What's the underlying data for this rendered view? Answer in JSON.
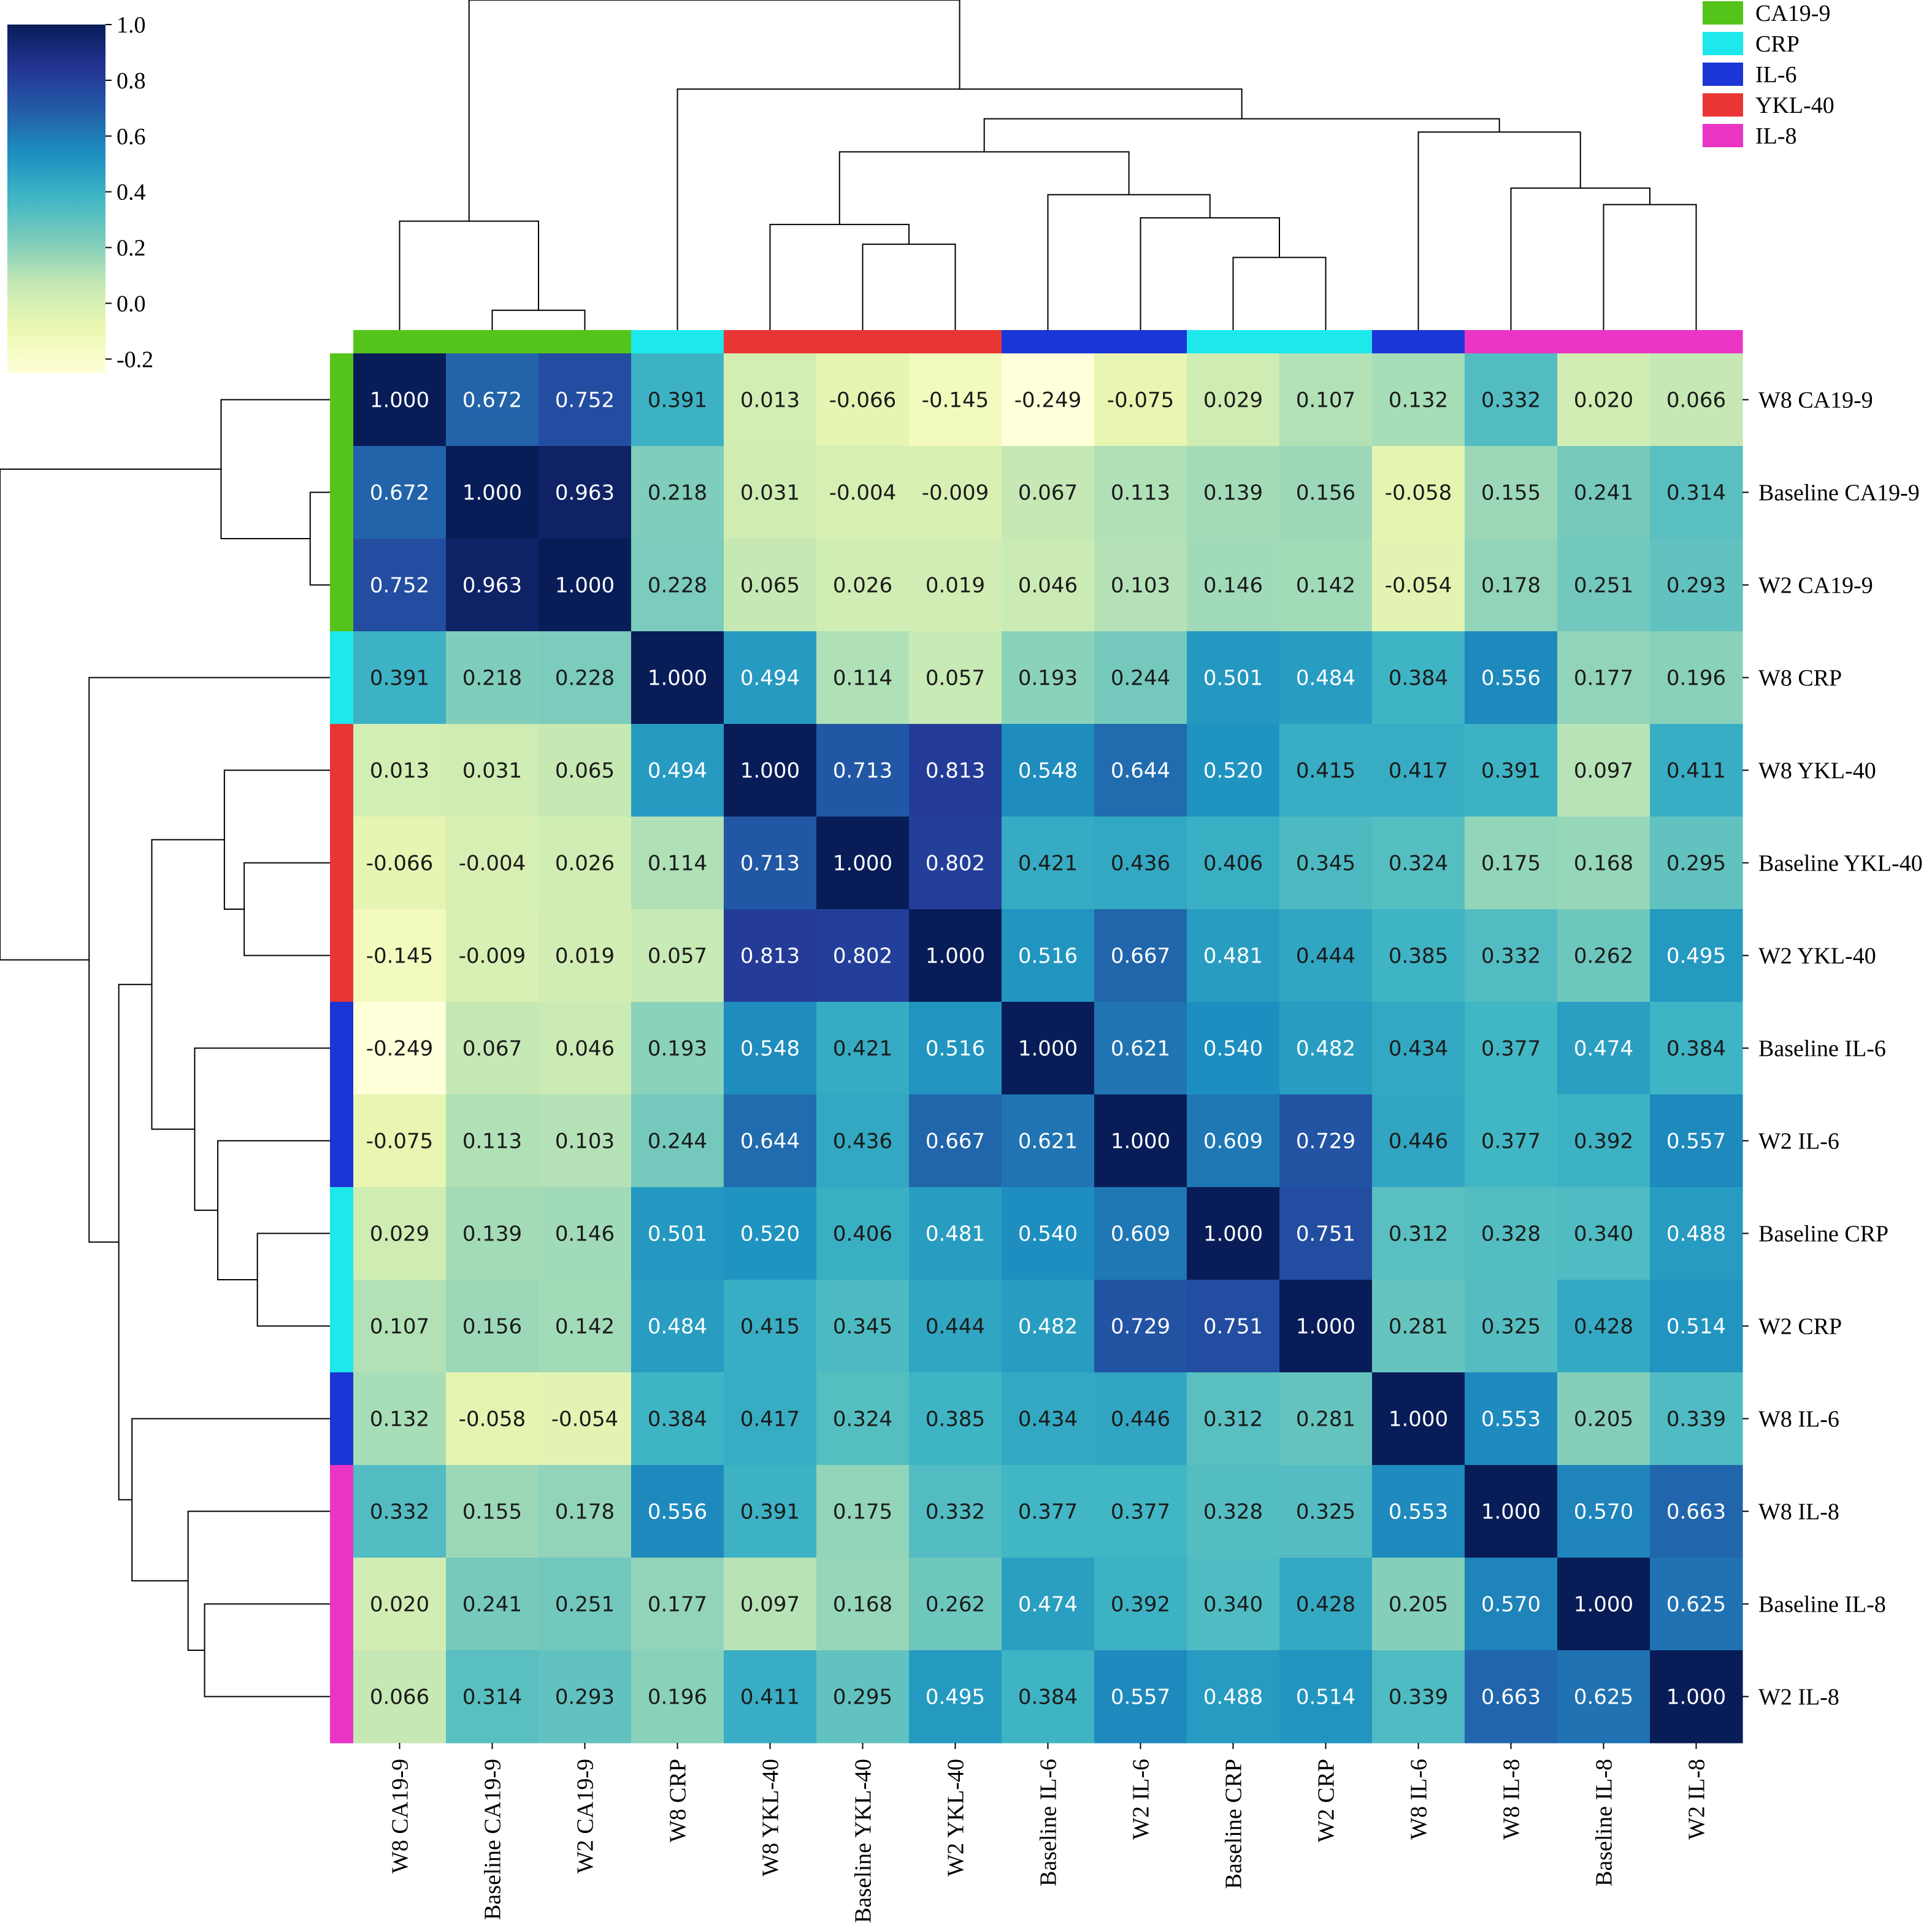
{
  "chart_data": {
    "type": "heatmap",
    "title": "",
    "xlabel": "",
    "ylabel": "",
    "row_labels": [
      "W8 CA19-9",
      "Baseline CA19-9",
      "W2 CA19-9",
      "W8 CRP",
      "W8 YKL-40",
      "Baseline YKL-40",
      "W2 YKL-40",
      "Baseline IL-6",
      "W2 IL-6",
      "Baseline CRP",
      "W2 CRP",
      "W8 IL-6",
      "W8 IL-8",
      "Baseline IL-8",
      "W2 IL-8"
    ],
    "col_labels": [
      "W8 CA19-9",
      "Baseline CA19-9",
      "W2 CA19-9",
      "W8 CRP",
      "W8 YKL-40",
      "Baseline YKL-40",
      "W2 YKL-40",
      "Baseline IL-6",
      "W2 IL-6",
      "Baseline CRP",
      "W2 CRP",
      "W8 IL-6",
      "W8 IL-8",
      "Baseline IL-8",
      "W2 IL-8"
    ],
    "values": [
      [
        1.0,
        0.672,
        0.752,
        0.391,
        0.013,
        -0.066,
        -0.145,
        -0.249,
        -0.075,
        0.029,
        0.107,
        0.132,
        0.332,
        0.02,
        0.066
      ],
      [
        0.672,
        1.0,
        0.963,
        0.218,
        0.031,
        -0.004,
        -0.009,
        0.067,
        0.113,
        0.139,
        0.156,
        -0.058,
        0.155,
        0.241,
        0.314
      ],
      [
        0.752,
        0.963,
        1.0,
        0.228,
        0.065,
        0.026,
        0.019,
        0.046,
        0.103,
        0.146,
        0.142,
        -0.054,
        0.178,
        0.251,
        0.293
      ],
      [
        0.391,
        0.218,
        0.228,
        1.0,
        0.494,
        0.114,
        0.057,
        0.193,
        0.244,
        0.501,
        0.484,
        0.384,
        0.556,
        0.177,
        0.196
      ],
      [
        0.013,
        0.031,
        0.065,
        0.494,
        1.0,
        0.713,
        0.813,
        0.548,
        0.644,
        0.52,
        0.415,
        0.417,
        0.391,
        0.097,
        0.411
      ],
      [
        -0.066,
        -0.004,
        0.026,
        0.114,
        0.713,
        1.0,
        0.802,
        0.421,
        0.436,
        0.406,
        0.345,
        0.324,
        0.175,
        0.168,
        0.295
      ],
      [
        -0.145,
        -0.009,
        0.019,
        0.057,
        0.813,
        0.802,
        1.0,
        0.516,
        0.667,
        0.481,
        0.444,
        0.385,
        0.332,
        0.262,
        0.495
      ],
      [
        -0.249,
        0.067,
        0.046,
        0.193,
        0.548,
        0.421,
        0.516,
        1.0,
        0.621,
        0.54,
        0.482,
        0.434,
        0.377,
        0.474,
        0.384
      ],
      [
        -0.075,
        0.113,
        0.103,
        0.244,
        0.644,
        0.436,
        0.667,
        0.621,
        1.0,
        0.609,
        0.729,
        0.446,
        0.377,
        0.392,
        0.557
      ],
      [
        0.029,
        0.139,
        0.146,
        0.501,
        0.52,
        0.406,
        0.481,
        0.54,
        0.609,
        1.0,
        0.751,
        0.312,
        0.328,
        0.34,
        0.488
      ],
      [
        0.107,
        0.156,
        0.142,
        0.484,
        0.415,
        0.345,
        0.444,
        0.482,
        0.729,
        0.751,
        1.0,
        0.281,
        0.325,
        0.428,
        0.514
      ],
      [
        0.132,
        -0.058,
        -0.054,
        0.384,
        0.417,
        0.324,
        0.385,
        0.434,
        0.446,
        0.312,
        0.281,
        1.0,
        0.553,
        0.205,
        0.339
      ],
      [
        0.332,
        0.155,
        0.178,
        0.556,
        0.391,
        0.175,
        0.332,
        0.377,
        0.377,
        0.328,
        0.325,
        0.553,
        1.0,
        0.57,
        0.663
      ],
      [
        0.02,
        0.241,
        0.251,
        0.177,
        0.097,
        0.168,
        0.262,
        0.474,
        0.392,
        0.34,
        0.428,
        0.205,
        0.57,
        1.0,
        0.625
      ],
      [
        0.066,
        0.314,
        0.293,
        0.196,
        0.411,
        0.295,
        0.495,
        0.384,
        0.557,
        0.488,
        0.514,
        0.339,
        0.663,
        0.625,
        1.0
      ]
    ],
    "value_format": "3 decimals",
    "colormap": {
      "name": "YlGnBu",
      "vmin": -0.25,
      "vmax": 1.0,
      "stops": [
        "#ffffd9",
        "#edf8b1",
        "#c7e9b4",
        "#7fcdbb",
        "#41b6c4",
        "#1d91c0",
        "#225ea8",
        "#253494",
        "#081d58"
      ]
    },
    "colorbar": {
      "ticks": [
        1.0,
        0.8,
        0.6,
        0.4,
        0.2,
        0.0,
        -0.2
      ],
      "tick_labels": [
        "1.0",
        "0.8",
        "0.6",
        "0.4",
        "0.2",
        "0.0",
        "-0.2"
      ],
      "range": [
        -0.25,
        1.0
      ]
    },
    "groups": [
      {
        "name": "CA19-9",
        "color": "#55c41a"
      },
      {
        "name": "CRP",
        "color": "#1de8ec"
      },
      {
        "name": "IL-6",
        "color": "#1c35d6"
      },
      {
        "name": "YKL-40",
        "color": "#ea3535"
      },
      {
        "name": "IL-8",
        "color": "#ea35c4"
      }
    ],
    "row_group_colors": [
      "#55c41a",
      "#55c41a",
      "#55c41a",
      "#1de8ec",
      "#ea3535",
      "#ea3535",
      "#ea3535",
      "#1c35d6",
      "#1c35d6",
      "#1de8ec",
      "#1de8ec",
      "#1c35d6",
      "#ea35c4",
      "#ea35c4",
      "#ea35c4"
    ],
    "col_group_colors": [
      "#55c41a",
      "#55c41a",
      "#55c41a",
      "#1de8ec",
      "#ea3535",
      "#ea3535",
      "#ea3535",
      "#1c35d6",
      "#1c35d6",
      "#1de8ec",
      "#1de8ec",
      "#1c35d6",
      "#ea35c4",
      "#ea35c4",
      "#ea35c4"
    ],
    "legend_placement": "top-right",
    "dendrogram": {
      "method": "hierarchical",
      "order": [
        "W8 CA19-9",
        "Baseline CA19-9",
        "W2 CA19-9",
        "W8 CRP",
        "W8 YKL-40",
        "Baseline YKL-40",
        "W2 YKL-40",
        "Baseline IL-6",
        "W2 IL-6",
        "Baseline CRP",
        "W2 CRP",
        "W8 IL-6",
        "W8 IL-8",
        "Baseline IL-8",
        "W2 IL-8"
      ],
      "max_height": 1.0,
      "merges": [
        {
          "a": 1,
          "b": 2,
          "h": 0.06
        },
        {
          "a": 0,
          "b": "m0",
          "h": 0.33
        },
        {
          "a": 5,
          "b": 6,
          "h": 0.26
        },
        {
          "a": 4,
          "b": "m2",
          "h": 0.32
        },
        {
          "a": 9,
          "b": 10,
          "h": 0.22
        },
        {
          "a": 8,
          "b": "m4",
          "h": 0.34
        },
        {
          "a": 7,
          "b": "m5",
          "h": 0.41
        },
        {
          "a": "m3",
          "b": "m6",
          "h": 0.54
        },
        {
          "a": 13,
          "b": 14,
          "h": 0.38
        },
        {
          "a": 12,
          "b": "m8",
          "h": 0.43
        },
        {
          "a": 11,
          "b": "m9",
          "h": 0.6
        },
        {
          "a": "m7",
          "b": "m10",
          "h": 0.64
        },
        {
          "a": 3,
          "b": "m11",
          "h": 0.73
        },
        {
          "a": "m1",
          "b": "m12",
          "h": 1.0
        }
      ]
    }
  }
}
